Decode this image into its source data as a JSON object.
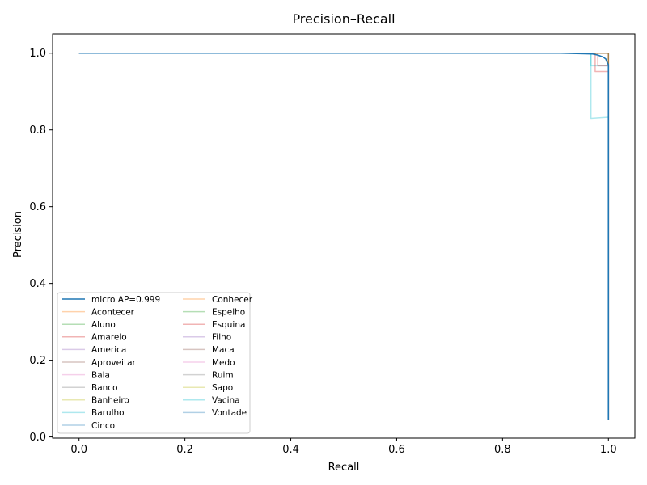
{
  "chart_data": {
    "type": "line",
    "title": "Precision–Recall",
    "xlabel": "Recall",
    "ylabel": "Precision",
    "xlim": [
      -0.05,
      1.05
    ],
    "ylim": [
      -0.003,
      1.05
    ],
    "xticks": [
      {
        "value": 0.0,
        "label": "0.0"
      },
      {
        "value": 0.2,
        "label": "0.2"
      },
      {
        "value": 0.4,
        "label": "0.4"
      },
      {
        "value": 0.6,
        "label": "0.6"
      },
      {
        "value": 0.8,
        "label": "0.8"
      },
      {
        "value": 1.0,
        "label": "1.0"
      }
    ],
    "yticks": [
      {
        "value": 0.0,
        "label": "0.0"
      },
      {
        "value": 0.2,
        "label": "0.2"
      },
      {
        "value": 0.4,
        "label": "0.4"
      },
      {
        "value": 0.6,
        "label": "0.6"
      },
      {
        "value": 0.8,
        "label": "0.8"
      },
      {
        "value": 1.0,
        "label": "1.0"
      }
    ],
    "grid": false,
    "legend_position": "lower-left",
    "legend_columns": 2,
    "series": [
      {
        "name": "micro AP=0.999",
        "color": "#1f77b4",
        "opacity": 1.0,
        "width": 1.6,
        "x": [
          0.0,
          0.91,
          0.97,
          0.98,
          0.99,
          0.995,
          0.998,
          1.0,
          1.0,
          1.0
        ],
        "y": [
          1.0,
          1.0,
          0.998,
          0.995,
          0.99,
          0.985,
          0.975,
          0.97,
          0.81,
          0.045
        ]
      },
      {
        "name": "Acontecer",
        "color": "#ff7f0e",
        "opacity": 0.35,
        "width": 1.5,
        "x": [
          0.0,
          1.0,
          1.0
        ],
        "y": [
          1.0,
          1.0,
          0.045
        ]
      },
      {
        "name": "Aluno",
        "color": "#2ca02c",
        "opacity": 0.35,
        "width": 1.5,
        "x": [
          0.0,
          1.0,
          1.0
        ],
        "y": [
          1.0,
          1.0,
          0.045
        ]
      },
      {
        "name": "Amarelo",
        "color": "#d62728",
        "opacity": 0.35,
        "width": 1.5,
        "x": [
          0.0,
          0.975,
          0.975,
          1.0,
          1.0
        ],
        "y": [
          1.0,
          1.0,
          0.952,
          0.952,
          0.045
        ]
      },
      {
        "name": "America",
        "color": "#9467bd",
        "opacity": 0.35,
        "width": 1.5,
        "x": [
          0.0,
          1.0,
          1.0
        ],
        "y": [
          1.0,
          1.0,
          0.045
        ]
      },
      {
        "name": "Aproveitar",
        "color": "#8c564b",
        "opacity": 0.35,
        "width": 1.5,
        "x": [
          0.0,
          1.0,
          1.0
        ],
        "y": [
          1.0,
          1.0,
          0.045
        ]
      },
      {
        "name": "Bala",
        "color": "#e377c2",
        "opacity": 0.35,
        "width": 1.5,
        "x": [
          0.0,
          1.0,
          1.0
        ],
        "y": [
          1.0,
          1.0,
          0.045
        ]
      },
      {
        "name": "Banco",
        "color": "#7f7f7f",
        "opacity": 0.35,
        "width": 1.5,
        "x": [
          0.0,
          1.0,
          1.0
        ],
        "y": [
          1.0,
          1.0,
          0.045
        ]
      },
      {
        "name": "Banheiro",
        "color": "#bcbd22",
        "opacity": 0.35,
        "width": 1.5,
        "x": [
          0.0,
          1.0,
          1.0
        ],
        "y": [
          1.0,
          1.0,
          0.045
        ]
      },
      {
        "name": "Barulho",
        "color": "#17becf",
        "opacity": 0.35,
        "width": 1.5,
        "x": [
          0.0,
          0.967,
          0.967,
          1.0,
          1.0
        ],
        "y": [
          1.0,
          1.0,
          0.83,
          0.833,
          0.045
        ]
      },
      {
        "name": "Cinco",
        "color": "#1f77b4",
        "opacity": 0.35,
        "width": 1.5,
        "x": [
          0.0,
          1.0,
          1.0
        ],
        "y": [
          1.0,
          1.0,
          0.045
        ]
      },
      {
        "name": "Conhecer",
        "color": "#ff7f0e",
        "opacity": 0.35,
        "width": 1.5,
        "x": [
          0.0,
          1.0,
          1.0
        ],
        "y": [
          1.0,
          1.0,
          0.045
        ]
      },
      {
        "name": "Espelho",
        "color": "#2ca02c",
        "opacity": 0.35,
        "width": 1.5,
        "x": [
          0.0,
          1.0,
          1.0
        ],
        "y": [
          1.0,
          1.0,
          0.045
        ]
      },
      {
        "name": "Esquina",
        "color": "#d62728",
        "opacity": 0.35,
        "width": 1.5,
        "x": [
          0.0,
          0.98,
          0.98,
          1.0,
          1.0
        ],
        "y": [
          1.0,
          1.0,
          0.967,
          0.967,
          0.045
        ]
      },
      {
        "name": "Filho",
        "color": "#9467bd",
        "opacity": 0.35,
        "width": 1.5,
        "x": [
          0.0,
          1.0,
          1.0
        ],
        "y": [
          1.0,
          1.0,
          0.045
        ]
      },
      {
        "name": "Maca",
        "color": "#8c564b",
        "opacity": 0.35,
        "width": 1.5,
        "x": [
          0.0,
          1.0,
          1.0
        ],
        "y": [
          1.0,
          1.0,
          0.045
        ]
      },
      {
        "name": "Medo",
        "color": "#e377c2",
        "opacity": 0.35,
        "width": 1.5,
        "x": [
          0.0,
          1.0,
          1.0
        ],
        "y": [
          1.0,
          1.0,
          0.045
        ]
      },
      {
        "name": "Ruim",
        "color": "#7f7f7f",
        "opacity": 0.35,
        "width": 1.5,
        "x": [
          0.0,
          1.0,
          1.0
        ],
        "y": [
          1.0,
          1.0,
          0.045
        ]
      },
      {
        "name": "Sapo",
        "color": "#bcbd22",
        "opacity": 0.35,
        "width": 1.5,
        "x": [
          0.0,
          1.0,
          1.0
        ],
        "y": [
          1.0,
          1.0,
          0.045
        ]
      },
      {
        "name": "Vacina",
        "color": "#17becf",
        "opacity": 0.35,
        "width": 1.5,
        "x": [
          0.0,
          0.967,
          0.967,
          1.0,
          1.0
        ],
        "y": [
          1.0,
          1.0,
          0.967,
          0.967,
          0.045
        ]
      },
      {
        "name": "Vontade",
        "color": "#1f77b4",
        "opacity": 0.35,
        "width": 1.5,
        "x": [
          0.0,
          1.0,
          1.0
        ],
        "y": [
          1.0,
          1.0,
          0.045
        ]
      }
    ]
  }
}
